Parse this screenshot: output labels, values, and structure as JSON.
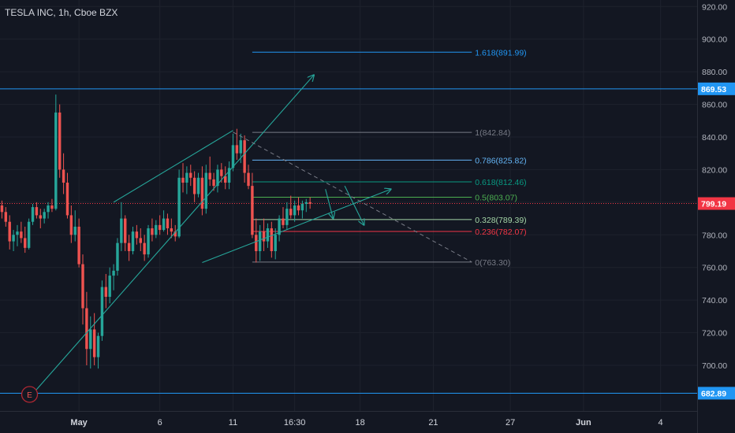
{
  "header": {
    "title": "TESLA INC, 1h, Cboe BZX"
  },
  "chart_data": {
    "type": "candlestick",
    "ylim": [
      672,
      924
    ],
    "yticks": [
      920,
      900,
      880,
      860,
      840,
      820,
      800,
      780,
      760,
      740,
      720,
      700
    ],
    "ytick_labels": [
      "920.00",
      "900.00",
      "880.00",
      "860.00",
      "840.00",
      "820.00",
      "800.00",
      "780.00",
      "760.00",
      "740.00",
      "720.00",
      "700.00"
    ],
    "xticks": [
      {
        "label": "May",
        "bar": 20
      },
      {
        "label": "6",
        "bar": 41
      },
      {
        "label": "11",
        "bar": 60
      },
      {
        "label": "16:30",
        "bar": 76
      },
      {
        "label": "18",
        "bar": 93
      },
      {
        "label": "21",
        "bar": 112
      },
      {
        "label": "27",
        "bar": 132
      },
      {
        "label": "Jun",
        "bar": 151
      },
      {
        "label": "4",
        "bar": 171
      }
    ],
    "x_total_bars": 181,
    "horizontal_levels": [
      {
        "label": "869.53",
        "value": 869.53,
        "color": "#2196f3"
      },
      {
        "label": "682.89",
        "value": 682.89,
        "color": "#2196f3"
      }
    ],
    "current_price": {
      "label": "799.19",
      "value": 799.19,
      "color": "#f23645"
    },
    "fibonacci": {
      "bar_start": 65,
      "bar_end": 122,
      "levels": [
        {
          "label": "1.618(891.99)",
          "value": 891.99,
          "color": "#2196f3",
          "start_bar": 65
        },
        {
          "label": "1(842.84)",
          "value": 842.84,
          "color": "#787b86"
        },
        {
          "label": "0.786(825.82)",
          "value": 825.82,
          "color": "#64b5f6"
        },
        {
          "label": "0.618(812.46)",
          "value": 812.46,
          "color": "#089981"
        },
        {
          "label": "0.5(803.07)",
          "value": 803.07,
          "color": "#4caf50"
        },
        {
          "label": "0.328(789.39)",
          "value": 789.39,
          "color": "#a5d6a7"
        },
        {
          "label": "0.236(782.07)",
          "value": 782.07,
          "color": "#f23645"
        },
        {
          "label": "0(763.30)",
          "value": 763.3,
          "color": "#787b86"
        }
      ]
    },
    "earnings_marker": {
      "label": "E",
      "bar": 8
    },
    "candles": [
      [
        798,
        801,
        790,
        794
      ],
      [
        794,
        797,
        785,
        788
      ],
      [
        788,
        792,
        771,
        776
      ],
      [
        776,
        783,
        770,
        780
      ],
      [
        780,
        786,
        773,
        782
      ],
      [
        782,
        788,
        775,
        778
      ],
      [
        778,
        785,
        769,
        772
      ],
      [
        772,
        790,
        771,
        788
      ],
      [
        788,
        799,
        786,
        797
      ],
      [
        797,
        800,
        790,
        792
      ],
      [
        792,
        796,
        784,
        790
      ],
      [
        790,
        796,
        787,
        794
      ],
      [
        794,
        800,
        790,
        798
      ],
      [
        798,
        802,
        794,
        796
      ],
      [
        796,
        866,
        795,
        855
      ],
      [
        855,
        860,
        815,
        820
      ],
      [
        820,
        830,
        805,
        812
      ],
      [
        812,
        818,
        790,
        792
      ],
      [
        792,
        798,
        775,
        780
      ],
      [
        780,
        795,
        776,
        785
      ],
      [
        785,
        790,
        760,
        762
      ],
      [
        762,
        768,
        725,
        735
      ],
      [
        735,
        745,
        700,
        710
      ],
      [
        710,
        730,
        698,
        722
      ],
      [
        722,
        732,
        700,
        705
      ],
      [
        705,
        720,
        698,
        718
      ],
      [
        718,
        752,
        715,
        748
      ],
      [
        748,
        756,
        735,
        742
      ],
      [
        742,
        760,
        738,
        755
      ],
      [
        755,
        762,
        746,
        758
      ],
      [
        758,
        778,
        755,
        775
      ],
      [
        775,
        800,
        770,
        790
      ],
      [
        790,
        792,
        770,
        775
      ],
      [
        775,
        780,
        764,
        770
      ],
      [
        770,
        785,
        768,
        782
      ],
      [
        782,
        786,
        774,
        778
      ],
      [
        778,
        784,
        770,
        775
      ],
      [
        775,
        780,
        764,
        768
      ],
      [
        768,
        786,
        766,
        784
      ],
      [
        784,
        790,
        776,
        780
      ],
      [
        780,
        789,
        778,
        786
      ],
      [
        786,
        792,
        780,
        783
      ],
      [
        783,
        795,
        782,
        790
      ],
      [
        790,
        793,
        780,
        784
      ],
      [
        784,
        790,
        778,
        782
      ],
      [
        782,
        786,
        776,
        779
      ],
      [
        779,
        820,
        778,
        815
      ],
      [
        815,
        824,
        806,
        812
      ],
      [
        812,
        822,
        805,
        818
      ],
      [
        818,
        823,
        810,
        815
      ],
      [
        815,
        819,
        800,
        805
      ],
      [
        805,
        818,
        803,
        815
      ],
      [
        815,
        822,
        792,
        796
      ],
      [
        796,
        823,
        793,
        818
      ],
      [
        818,
        828,
        810,
        814
      ],
      [
        814,
        818,
        807,
        810
      ],
      [
        810,
        823,
        806,
        820
      ],
      [
        820,
        824,
        812,
        816
      ],
      [
        816,
        822,
        808,
        812
      ],
      [
        812,
        825,
        808,
        821
      ],
      [
        821,
        842,
        819,
        835
      ],
      [
        835,
        845,
        826,
        830
      ],
      [
        830,
        842,
        824,
        838
      ],
      [
        838,
        841,
        812,
        818
      ],
      [
        818,
        823,
        808,
        810
      ],
      [
        810,
        818,
        778,
        780
      ],
      [
        780,
        790,
        763,
        770
      ],
      [
        770,
        786,
        764,
        782
      ],
      [
        782,
        790,
        770,
        776
      ],
      [
        776,
        787,
        772,
        784
      ],
      [
        784,
        788,
        766,
        770
      ],
      [
        770,
        784,
        765,
        780
      ],
      [
        780,
        792,
        776,
        790
      ],
      [
        790,
        797,
        784,
        786
      ],
      [
        786,
        800,
        783,
        796
      ],
      [
        796,
        804,
        790,
        792
      ],
      [
        792,
        801,
        788,
        798
      ],
      [
        798,
        803,
        792,
        795
      ],
      [
        795,
        801,
        790,
        799
      ],
      [
        799,
        802,
        794,
        800
      ],
      [
        800,
        803,
        796,
        799
      ]
    ],
    "channel_lines": [
      {
        "from": [
          8,
          682.5
        ],
        "to": [
          81,
          878
        ],
        "color": "#26a69a",
        "arrow": true
      },
      {
        "from": [
          29,
          800
        ],
        "to": [
          60,
          844
        ],
        "color": "#26a69a",
        "arrow": false
      },
      {
        "from": [
          52,
          763
        ],
        "to": [
          101,
          808
        ],
        "color": "#26a69a",
        "arrow": true
      }
    ],
    "projection_paths": [
      {
        "points": [
          [
            84,
            808
          ],
          [
            86,
            790
          ]
        ],
        "color": "#26a69a"
      },
      {
        "points": [
          [
            89,
            810
          ],
          [
            94,
            786
          ]
        ],
        "color": "#26a69a"
      }
    ],
    "dashed_line": {
      "from": [
        60,
        843
      ],
      "to": [
        122,
        763.3
      ],
      "color": "#787b86"
    }
  }
}
